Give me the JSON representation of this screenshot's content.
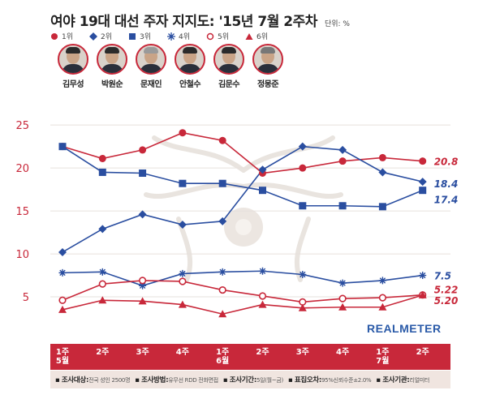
{
  "title": "여야 19대 대선 주자 지지도: '15년 7월 2주차",
  "unit": "단위: %",
  "legend": [
    {
      "rank": "1위",
      "color": "#c8283a",
      "marker": "circle-filled"
    },
    {
      "rank": "2위",
      "color": "#2a4ea0",
      "marker": "diamond"
    },
    {
      "rank": "3위",
      "color": "#2a4ea0",
      "marker": "square"
    },
    {
      "rank": "4위",
      "color": "#2a4ea0",
      "marker": "asterisk"
    },
    {
      "rank": "5위",
      "color": "#c8283a",
      "marker": "circle-open"
    },
    {
      "rank": "6위",
      "color": "#c8283a",
      "marker": "triangle"
    }
  ],
  "candidates": [
    "김무성",
    "박원순",
    "문재인",
    "안철수",
    "김문수",
    "정몽준"
  ],
  "brand": "REALMETER",
  "footer": [
    {
      "label": "조사대상:",
      "value": "전국 성인 2500명"
    },
    {
      "label": "조사방법:",
      "value": "유무선 RDD 전화면접"
    },
    {
      "label": "조사기간:",
      "value": "5일(월~금)"
    },
    {
      "label": "표집오차:",
      "value": "95%신뢰수준±2.0%"
    },
    {
      "label": "조사기관:",
      "value": "리얼미터"
    }
  ],
  "chart_data": {
    "type": "line",
    "categories": [
      "1주 5월",
      "2주",
      "3주",
      "4주",
      "1주 6월",
      "2주",
      "3주",
      "4주",
      "1주 7월",
      "2주"
    ],
    "ylim": [
      0,
      27
    ],
    "yticks": [
      5,
      10,
      15,
      20,
      25
    ],
    "series": [
      {
        "name": "1위",
        "marker": "circle-filled",
        "color": "#c8283a",
        "values": [
          22.5,
          21.1,
          22.1,
          24.1,
          23.2,
          19.4,
          20.0,
          20.8,
          21.2,
          20.8
        ]
      },
      {
        "name": "2위",
        "marker": "diamond",
        "color": "#2a4ea0",
        "values": [
          10.2,
          12.9,
          14.6,
          13.4,
          13.8,
          19.8,
          22.5,
          22.1,
          19.5,
          18.4
        ]
      },
      {
        "name": "3위",
        "marker": "square",
        "color": "#2a4ea0",
        "values": [
          22.5,
          19.5,
          19.4,
          18.2,
          18.2,
          17.4,
          15.6,
          15.6,
          15.5,
          17.4
        ]
      },
      {
        "name": "4위",
        "marker": "asterisk",
        "color": "#2a4ea0",
        "values": [
          7.8,
          7.9,
          6.3,
          7.7,
          7.9,
          8.0,
          7.6,
          6.6,
          6.9,
          7.5
        ]
      },
      {
        "name": "5위",
        "marker": "circle-open",
        "color": "#c8283a",
        "values": [
          4.6,
          6.5,
          6.9,
          6.8,
          5.8,
          5.1,
          4.4,
          4.8,
          4.9,
          5.22
        ]
      },
      {
        "name": "6위",
        "marker": "triangle",
        "color": "#c8283a",
        "values": [
          3.5,
          4.6,
          4.5,
          4.1,
          3.0,
          4.1,
          3.7,
          3.8,
          3.8,
          5.2
        ]
      }
    ],
    "end_labels": [
      "20.8",
      "18.4",
      "17.4",
      "7.5",
      "5.22",
      "5.20"
    ]
  }
}
